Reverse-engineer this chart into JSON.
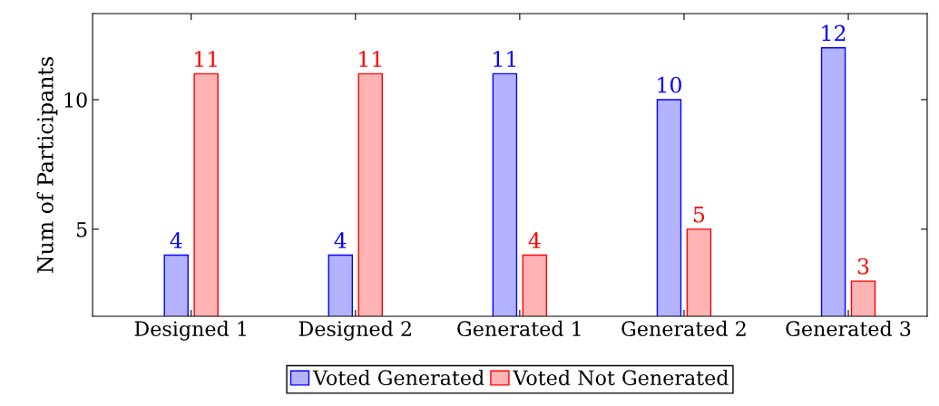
{
  "chart_data": {
    "type": "bar",
    "ylabel": "Num of Participants",
    "categories": [
      "Designed 1",
      "Designed 2",
      "Generated 1",
      "Generated 2",
      "Generated 3"
    ],
    "series": [
      {
        "name": "Voted Generated",
        "color": "#b3b3ff",
        "values": [
          4,
          4,
          11,
          10,
          12
        ]
      },
      {
        "name": "Voted Not Generated",
        "color": "#ffb3b3",
        "values": [
          11,
          11,
          4,
          5,
          3
        ]
      }
    ],
    "ylim": [
      1.64,
      13.32
    ],
    "yticks": [
      5,
      10
    ],
    "data_labels": true,
    "legend": "bottom",
    "grid": false
  }
}
